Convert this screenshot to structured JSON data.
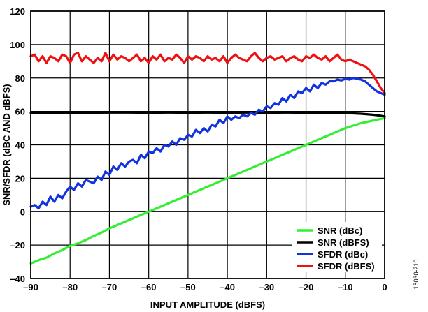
{
  "figure_id": "15030-210",
  "chart_data": {
    "type": "line",
    "xlabel": "INPUT AMPLITUDE (dBFS)",
    "ylabel": "SNR/SFDR (dBC AND dBFS)",
    "xlim": [
      -90,
      0
    ],
    "ylim": [
      -40,
      120
    ],
    "xticks": [
      -90,
      -80,
      -70,
      -60,
      -50,
      -40,
      -30,
      -20,
      -10,
      0
    ],
    "xtick_labels": [
      "–90",
      "–80",
      "–70",
      "–60",
      "–50",
      "–40",
      "–30",
      "–20",
      "–10",
      "0"
    ],
    "yticks": [
      -40,
      -20,
      0,
      20,
      40,
      60,
      80,
      100,
      120
    ],
    "ytick_labels": [
      "–40",
      "–20",
      "0",
      "20",
      "40",
      "60",
      "80",
      "100",
      "120"
    ],
    "grid": true,
    "legend_position": "bottom-right",
    "series": [
      {
        "name": "SNR (dBc)",
        "color": "#33ee33",
        "points": [
          [
            -90,
            -31
          ],
          [
            -88,
            -29
          ],
          [
            -86,
            -27.5
          ],
          [
            -84,
            -25
          ],
          [
            -82,
            -23
          ],
          [
            -80,
            -20.5
          ],
          [
            -78,
            -19
          ],
          [
            -76,
            -17
          ],
          [
            -74,
            -14.5
          ],
          [
            -72,
            -12.5
          ],
          [
            -70,
            -10
          ],
          [
            -68,
            -8
          ],
          [
            -66,
            -6
          ],
          [
            -64,
            -4
          ],
          [
            -62,
            -2
          ],
          [
            -60,
            0
          ],
          [
            -58,
            2
          ],
          [
            -56,
            4
          ],
          [
            -54,
            6
          ],
          [
            -52,
            8
          ],
          [
            -50,
            10
          ],
          [
            -48,
            12
          ],
          [
            -46,
            14
          ],
          [
            -44,
            16
          ],
          [
            -42,
            18
          ],
          [
            -40,
            20
          ],
          [
            -38,
            22
          ],
          [
            -36,
            24
          ],
          [
            -34,
            26
          ],
          [
            -32,
            28
          ],
          [
            -30,
            30
          ],
          [
            -28,
            32
          ],
          [
            -26,
            34
          ],
          [
            -24,
            36
          ],
          [
            -22,
            38
          ],
          [
            -20,
            40
          ],
          [
            -18,
            42
          ],
          [
            -16,
            44
          ],
          [
            -14,
            46
          ],
          [
            -12,
            48
          ],
          [
            -10,
            50
          ],
          [
            -8,
            51.5
          ],
          [
            -6,
            53
          ],
          [
            -4,
            54
          ],
          [
            -2,
            55
          ],
          [
            0,
            56
          ]
        ]
      },
      {
        "name": "SNR (dBFS)",
        "color": "#000000",
        "points": [
          [
            -90,
            59
          ],
          [
            -85,
            59.1
          ],
          [
            -80,
            59.2
          ],
          [
            -75,
            59.2
          ],
          [
            -70,
            59.3
          ],
          [
            -65,
            59.3
          ],
          [
            -60,
            59.2
          ],
          [
            -55,
            59.3
          ],
          [
            -50,
            59.2
          ],
          [
            -45,
            59.3
          ],
          [
            -40,
            59.2
          ],
          [
            -35,
            59.3
          ],
          [
            -30,
            59.2
          ],
          [
            -25,
            59.3
          ],
          [
            -20,
            59.2
          ],
          [
            -15,
            59.1
          ],
          [
            -10,
            59
          ],
          [
            -6,
            58.6
          ],
          [
            -3,
            58
          ],
          [
            -1,
            57.4
          ],
          [
            0,
            57
          ]
        ]
      },
      {
        "name": "SFDR (dBc)",
        "color": "#1133dd",
        "points": [
          [
            -90,
            3
          ],
          [
            -89,
            4
          ],
          [
            -88,
            2
          ],
          [
            -87,
            6
          ],
          [
            -86,
            4
          ],
          [
            -85,
            9
          ],
          [
            -84,
            6
          ],
          [
            -83,
            10
          ],
          [
            -82,
            8
          ],
          [
            -81,
            12
          ],
          [
            -80,
            15
          ],
          [
            -79,
            13
          ],
          [
            -78,
            17
          ],
          [
            -77,
            15
          ],
          [
            -76,
            19
          ],
          [
            -75,
            18
          ],
          [
            -74,
            17
          ],
          [
            -73,
            21
          ],
          [
            -72,
            19
          ],
          [
            -71,
            24
          ],
          [
            -70,
            22
          ],
          [
            -69,
            27
          ],
          [
            -68,
            25
          ],
          [
            -67,
            29
          ],
          [
            -66,
            27
          ],
          [
            -65,
            30
          ],
          [
            -64,
            31
          ],
          [
            -63,
            29
          ],
          [
            -62,
            34
          ],
          [
            -61,
            32
          ],
          [
            -60,
            36
          ],
          [
            -59,
            35
          ],
          [
            -58,
            38
          ],
          [
            -57,
            36
          ],
          [
            -56,
            40
          ],
          [
            -55,
            39
          ],
          [
            -54,
            42
          ],
          [
            -53,
            40
          ],
          [
            -52,
            44
          ],
          [
            -51,
            43
          ],
          [
            -50,
            46
          ],
          [
            -49,
            45
          ],
          [
            -48,
            49
          ],
          [
            -47,
            47
          ],
          [
            -46,
            50
          ],
          [
            -45,
            48
          ],
          [
            -44,
            52
          ],
          [
            -43,
            51
          ],
          [
            -42,
            55
          ],
          [
            -41,
            53
          ],
          [
            -40,
            57
          ],
          [
            -39,
            55
          ],
          [
            -38,
            57
          ],
          [
            -37,
            56
          ],
          [
            -36,
            58
          ],
          [
            -35,
            57
          ],
          [
            -34,
            59
          ],
          [
            -33,
            58
          ],
          [
            -32,
            61
          ],
          [
            -31,
            60
          ],
          [
            -30,
            63
          ],
          [
            -29,
            62
          ],
          [
            -28,
            65
          ],
          [
            -27,
            64
          ],
          [
            -26,
            68
          ],
          [
            -25,
            66
          ],
          [
            -24,
            70
          ],
          [
            -23,
            68
          ],
          [
            -22,
            72
          ],
          [
            -21,
            71
          ],
          [
            -20,
            74
          ],
          [
            -19,
            72
          ],
          [
            -18,
            76
          ],
          [
            -17,
            74
          ],
          [
            -16,
            77
          ],
          [
            -15,
            76
          ],
          [
            -14,
            78
          ],
          [
            -13,
            78
          ],
          [
            -12,
            79
          ],
          [
            -11,
            78.5
          ],
          [
            -10,
            79.5
          ],
          [
            -9,
            79
          ],
          [
            -8,
            80
          ],
          [
            -7,
            79.5
          ],
          [
            -6,
            79
          ],
          [
            -5,
            78
          ],
          [
            -4,
            76
          ],
          [
            -3,
            74
          ],
          [
            -2,
            72
          ],
          [
            -1,
            71
          ],
          [
            0,
            70
          ]
        ]
      },
      {
        "name": "SFDR (dBFS)",
        "color": "#ee1111",
        "points": [
          [
            -90,
            93
          ],
          [
            -89,
            94
          ],
          [
            -88,
            90
          ],
          [
            -87,
            93
          ],
          [
            -86,
            89
          ],
          [
            -85,
            93
          ],
          [
            -84,
            92
          ],
          [
            -83,
            90
          ],
          [
            -82,
            94
          ],
          [
            -81,
            93
          ],
          [
            -80,
            89
          ],
          [
            -79,
            94
          ],
          [
            -78,
            95
          ],
          [
            -77,
            90
          ],
          [
            -76,
            93
          ],
          [
            -75,
            91
          ],
          [
            -74,
            89
          ],
          [
            -73,
            92
          ],
          [
            -72,
            90
          ],
          [
            -71,
            95
          ],
          [
            -70,
            90
          ],
          [
            -69,
            94
          ],
          [
            -68,
            91
          ],
          [
            -67,
            93
          ],
          [
            -66,
            92
          ],
          [
            -65,
            90
          ],
          [
            -64,
            92
          ],
          [
            -63,
            94
          ],
          [
            -62,
            90
          ],
          [
            -61,
            92
          ],
          [
            -60,
            89
          ],
          [
            -59,
            93
          ],
          [
            -58,
            91
          ],
          [
            -57,
            94
          ],
          [
            -56,
            90
          ],
          [
            -55,
            92
          ],
          [
            -54,
            91
          ],
          [
            -53,
            94
          ],
          [
            -52,
            92
          ],
          [
            -51,
            89
          ],
          [
            -50,
            93
          ],
          [
            -49,
            91
          ],
          [
            -48,
            93
          ],
          [
            -47,
            92
          ],
          [
            -46,
            90
          ],
          [
            -45,
            93
          ],
          [
            -44,
            91
          ],
          [
            -43,
            92
          ],
          [
            -42,
            90
          ],
          [
            -41,
            93
          ],
          [
            -40,
            89
          ],
          [
            -39,
            92
          ],
          [
            -38,
            94
          ],
          [
            -37,
            92
          ],
          [
            -36,
            91
          ],
          [
            -35,
            90
          ],
          [
            -34,
            93
          ],
          [
            -33,
            95
          ],
          [
            -32,
            92
          ],
          [
            -31,
            90
          ],
          [
            -30,
            92
          ],
          [
            -29,
            93
          ],
          [
            -28,
            91
          ],
          [
            -27,
            92
          ],
          [
            -26,
            93
          ],
          [
            -25,
            90
          ],
          [
            -24,
            92
          ],
          [
            -23,
            93
          ],
          [
            -22,
            91
          ],
          [
            -21,
            90
          ],
          [
            -20,
            93
          ],
          [
            -19,
            92
          ],
          [
            -18,
            94
          ],
          [
            -17,
            92
          ],
          [
            -16,
            91
          ],
          [
            -15,
            93
          ],
          [
            -14,
            90
          ],
          [
            -13,
            92
          ],
          [
            -12,
            94
          ],
          [
            -11,
            91
          ],
          [
            -10,
            90
          ],
          [
            -9,
            91
          ],
          [
            -8,
            90
          ],
          [
            -7,
            89
          ],
          [
            -6,
            88
          ],
          [
            -5,
            87
          ],
          [
            -4,
            85
          ],
          [
            -3,
            82
          ],
          [
            -2,
            78
          ],
          [
            -1,
            74
          ],
          [
            0,
            71
          ]
        ]
      }
    ]
  }
}
